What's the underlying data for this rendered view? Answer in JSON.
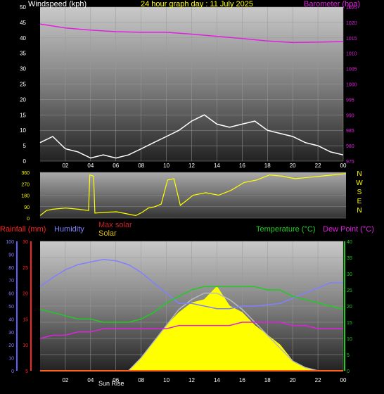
{
  "header": {
    "left_title": "Windspeed (kph)",
    "center_title": "24 hour graph day : 11 July 2025",
    "right_title": "Barometer (hpa)"
  },
  "panel3_labels": {
    "rainfall": "Rainfall (mm)",
    "humidity": "Humidity",
    "max_solar": "Max solar",
    "solar": "Solar",
    "temperature": "Temperature (°C)",
    "dew_point": "Dew Point (°C)",
    "sun_rise": "Sun Rise"
  },
  "colors": {
    "wind": "#ffffff",
    "gust_avg": "#00cc00",
    "barometer": "#e020e0",
    "direction": "#ffff00",
    "rainfall": "#ff2020",
    "humidity": "#8080ff",
    "max_solar": "#cc2222",
    "solar": "#ffff00",
    "temperature": "#20cc20",
    "dew_point": "#e020e0"
  },
  "chart_data": [
    {
      "type": "line",
      "title": "24 hour graph day : 11 July 2025",
      "xlabel": "",
      "x_ticks": [
        "02",
        "04",
        "06",
        "08",
        "10",
        "12",
        "14",
        "16",
        "18",
        "20",
        "22",
        "00"
      ],
      "y_left_label": "Windspeed (kph)",
      "y_left_ticks": [
        0,
        5,
        10,
        15,
        20,
        25,
        30,
        35,
        40,
        45,
        50
      ],
      "y_left_range": [
        0,
        50
      ],
      "y_right_label": "Barometer (hpa)",
      "y_right_ticks": [
        975,
        980,
        985,
        990,
        995,
        1000,
        1005,
        1010,
        1015,
        1020,
        1025
      ],
      "y_right_range": [
        975,
        1025
      ],
      "grid": true,
      "series": [
        {
          "name": "Windspeed (kph)",
          "axis": "left",
          "x": [
            0,
            1,
            2,
            3,
            4,
            5,
            6,
            7,
            8,
            9,
            10,
            11,
            12,
            13,
            14,
            15,
            16,
            17,
            18,
            19,
            20,
            21,
            22,
            23,
            24
          ],
          "values": [
            6,
            8,
            4,
            3,
            1,
            2,
            1,
            2,
            4,
            6,
            8,
            10,
            13,
            15,
            12,
            11,
            12,
            13,
            10,
            9,
            8,
            6,
            5,
            3,
            2
          ]
        },
        {
          "name": "Barometer (hpa)",
          "axis": "right",
          "x": [
            0,
            2,
            4,
            6,
            8,
            10,
            12,
            14,
            16,
            18,
            20,
            22,
            24
          ],
          "values": [
            1019.5,
            1018.2,
            1017.5,
            1017.0,
            1016.8,
            1016.8,
            1016.2,
            1015.5,
            1014.8,
            1014.0,
            1013.5,
            1013.6,
            1013.8
          ]
        }
      ]
    },
    {
      "type": "line",
      "y_ticks": [
        0,
        90,
        180,
        270,
        360
      ],
      "y_range": [
        0,
        360
      ],
      "direction_labels": [
        "N",
        "W",
        "S",
        "E",
        "N"
      ],
      "series": [
        {
          "name": "Wind direction",
          "x": [
            0,
            0.5,
            1,
            2,
            3,
            3.8,
            3.9,
            4.2,
            4.3,
            5,
            6,
            7,
            7.5,
            8,
            8.5,
            9,
            9.5,
            10,
            10.5,
            11,
            12,
            13,
            14,
            15,
            16,
            17,
            18,
            19,
            20,
            21,
            22,
            23,
            24
          ],
          "values": [
            20,
            60,
            70,
            80,
            70,
            60,
            340,
            330,
            40,
            45,
            50,
            30,
            20,
            45,
            80,
            90,
            110,
            300,
            310,
            100,
            180,
            200,
            180,
            220,
            280,
            300,
            340,
            330,
            310,
            320,
            330,
            340,
            350
          ]
        }
      ]
    },
    {
      "type": "area",
      "x_ticks": [
        "02",
        "04",
        "06",
        "08",
        "10",
        "12",
        "14",
        "16",
        "18",
        "20",
        "22",
        "00"
      ],
      "rain_ticks": [
        5,
        10,
        15,
        20,
        25,
        30
      ],
      "rain_range": [
        5,
        30
      ],
      "humidity_ticks": [
        0,
        10,
        20,
        30,
        40,
        50,
        60,
        70,
        80,
        90,
        100
      ],
      "humidity_range": [
        0,
        100
      ],
      "temp_ticks": [
        0,
        5,
        10,
        15,
        20,
        25,
        30,
        35,
        40
      ],
      "temp_range": [
        0,
        40
      ],
      "grid": true,
      "series": [
        {
          "name": "Humidity",
          "axis": "humidity",
          "x": [
            0,
            1,
            2,
            3,
            4,
            5,
            6,
            7,
            8,
            9,
            10,
            11,
            12,
            13,
            14,
            15,
            16,
            17,
            18,
            19,
            20,
            21,
            22,
            23,
            24
          ],
          "values": [
            65,
            72,
            78,
            82,
            84,
            86,
            85,
            82,
            76,
            68,
            60,
            52,
            52,
            50,
            48,
            48,
            50,
            50,
            51,
            52,
            56,
            60,
            64,
            68,
            68
          ]
        },
        {
          "name": "Temperature (°C)",
          "axis": "temp",
          "x": [
            0,
            1,
            2,
            3,
            4,
            5,
            6,
            7,
            8,
            9,
            10,
            11,
            12,
            13,
            14,
            15,
            16,
            17,
            18,
            19,
            20,
            21,
            22,
            23,
            24
          ],
          "values": [
            19,
            18,
            17,
            16,
            16,
            15,
            15,
            15,
            16,
            18,
            21,
            23,
            25,
            26,
            26,
            26,
            26,
            26,
            25,
            25,
            23,
            22,
            21,
            20,
            19
          ]
        },
        {
          "name": "Dew Point (°C)",
          "axis": "temp",
          "x": [
            0,
            1,
            2,
            3,
            4,
            5,
            6,
            7,
            8,
            9,
            10,
            11,
            12,
            13,
            14,
            15,
            16,
            17,
            18,
            19,
            20,
            21,
            22,
            23,
            24
          ],
          "values": [
            10,
            11,
            11,
            12,
            12,
            13,
            13,
            13,
            13,
            13,
            13,
            14,
            14,
            14,
            14,
            14,
            15,
            15,
            15,
            15,
            14,
            14,
            13,
            13,
            13
          ]
        },
        {
          "name": "Max solar",
          "axis": "temp",
          "x": [
            7,
            8,
            9,
            10,
            11,
            12,
            13,
            14,
            15,
            16,
            17,
            18,
            19,
            20,
            21,
            22
          ],
          "values": [
            0,
            4,
            9,
            14,
            19,
            22,
            24,
            24,
            22,
            19,
            15,
            11,
            7,
            3,
            1,
            0
          ]
        },
        {
          "name": "Solar",
          "axis": "temp",
          "x": [
            7,
            8,
            9,
            10,
            11,
            12,
            13,
            14,
            15,
            16,
            17,
            18,
            19,
            20,
            21,
            22
          ],
          "values": [
            0,
            4,
            9,
            14,
            18,
            21,
            22,
            26,
            20,
            18,
            14,
            11,
            8,
            3,
            1,
            0
          ]
        },
        {
          "name": "Rainfall (mm)",
          "axis": "rain",
          "x": [
            0,
            24
          ],
          "values": [
            5,
            5
          ]
        }
      ]
    }
  ]
}
